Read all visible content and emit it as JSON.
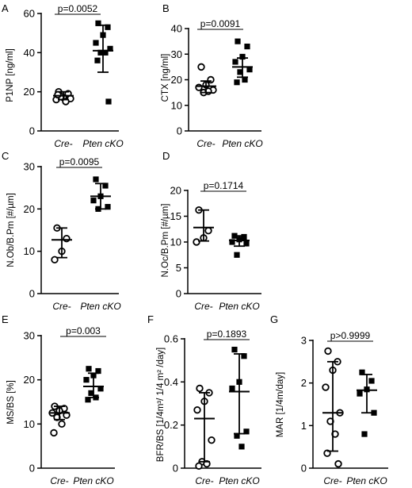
{
  "figure": {
    "colors": {
      "ink": "#000000",
      "open_marker_fill": "#ffffff",
      "background": "#ffffff"
    }
  },
  "chart_data": [
    {
      "panel": "A",
      "type": "scatter",
      "ylabel": "P1NP [ng/ml]",
      "ylim": [
        0,
        60
      ],
      "yticks": [
        0,
        20,
        40,
        60
      ],
      "categories": [
        "Cre-",
        "Pten cKO"
      ],
      "pvalue": "p=0.0052",
      "groups": [
        {
          "category": "Cre-",
          "marker": "circle",
          "mean": 18,
          "err_low": 16,
          "err_high": 20,
          "values": [
            20,
            19,
            17,
            16,
            16.5,
            17.5,
            15,
            18.5
          ]
        },
        {
          "category": "Pten cKO",
          "marker": "square",
          "mean": 41,
          "err_low": 30,
          "err_high": 54,
          "values": [
            55,
            53,
            49,
            45,
            42,
            40,
            40,
            36,
            15
          ]
        }
      ]
    },
    {
      "panel": "B",
      "type": "scatter",
      "ylabel": "CTX [ng/ml]",
      "ylim": [
        0,
        40
      ],
      "yticks": [
        0,
        10,
        20,
        30,
        40
      ],
      "categories": [
        "Cre-",
        "Pten cKO"
      ],
      "pvalue": "p=0.0091",
      "groups": [
        {
          "category": "Cre-",
          "marker": "circle",
          "mean": 17.5,
          "err_low": 15,
          "err_high": 19.5,
          "values": [
            25,
            20,
            18,
            17,
            16,
            15,
            15.5
          ]
        },
        {
          "category": "Pten cKO",
          "marker": "square",
          "mean": 25,
          "err_low": 21,
          "err_high": 28.5,
          "values": [
            35,
            33,
            29,
            27,
            24,
            23,
            20,
            19
          ]
        }
      ]
    },
    {
      "panel": "C",
      "type": "scatter",
      "ylabel": "N.Ob/B.Pm [#/µm]",
      "ylim": [
        0,
        30
      ],
      "yticks": [
        0,
        10,
        20,
        30
      ],
      "categories": [
        "Cre-",
        "Pten cKO"
      ],
      "pvalue": "p=0.0095",
      "groups": [
        {
          "category": "Cre-",
          "marker": "circle",
          "mean": 12.7,
          "err_low": 8.5,
          "err_high": 15.5,
          "values": [
            15.5,
            13,
            10,
            8
          ]
        },
        {
          "category": "Pten cKO",
          "marker": "square",
          "mean": 23,
          "err_low": 20,
          "err_high": 26,
          "values": [
            27,
            25.5,
            23,
            22,
            20.5,
            20
          ]
        }
      ]
    },
    {
      "panel": "D",
      "type": "scatter",
      "ylabel": "N.Oc/B.Pm [#/µm]",
      "ylim": [
        0,
        20
      ],
      "yticks": [
        0,
        5,
        10,
        15,
        20
      ],
      "categories": [
        "Cre-",
        "Pten cKO"
      ],
      "pvalue": "p=0.1714",
      "groups": [
        {
          "category": "Cre-",
          "marker": "circle",
          "mean": 12.8,
          "err_low": 10.2,
          "err_high": 16.2,
          "values": [
            16.2,
            12.2,
            10.8,
            10
          ]
        },
        {
          "category": "Pten cKO",
          "marker": "square",
          "mean": 10.3,
          "err_low": 9.2,
          "err_high": 11.2,
          "values": [
            11.2,
            11,
            10.5,
            10,
            9.7,
            7.5
          ]
        }
      ]
    },
    {
      "panel": "E",
      "type": "scatter",
      "ylabel": "MS/BS [%]",
      "ylim": [
        0,
        30
      ],
      "yticks": [
        0,
        10,
        20,
        30
      ],
      "categories": [
        "Cre-",
        "Pten cKO"
      ],
      "pvalue": "p=0.003",
      "groups": [
        {
          "category": "Cre-",
          "marker": "circle",
          "mean": 12.5,
          "err_low": 11,
          "err_high": 14,
          "values": [
            14,
            13.5,
            13,
            12.5,
            12,
            11.5,
            10,
            8
          ]
        },
        {
          "category": "Pten cKO",
          "marker": "square",
          "mean": 18.5,
          "err_low": 16,
          "err_high": 21.5,
          "values": [
            22.5,
            22,
            21,
            20,
            18,
            17,
            16,
            15.5
          ]
        }
      ]
    },
    {
      "panel": "F",
      "type": "scatter",
      "ylabel": "BFR/BS [1/4m³/ 1/4 m² /day]",
      "ylim": [
        0,
        0.6
      ],
      "yticks": [
        0,
        0.2,
        0.4,
        0.6
      ],
      "categories": [
        "Cre-",
        "Pten cKO"
      ],
      "pvalue": "p=0.1893",
      "groups": [
        {
          "category": "Cre-",
          "marker": "circle",
          "mean": 0.23,
          "err_low": 0.03,
          "err_high": 0.35,
          "values": [
            0.37,
            0.35,
            0.31,
            0.27,
            0.13,
            0.03,
            0.02,
            0.01
          ]
        },
        {
          "category": "Pten cKO",
          "marker": "square",
          "mean": 0.355,
          "err_low": 0.16,
          "err_high": 0.53,
          "values": [
            0.55,
            0.52,
            0.4,
            0.37,
            0.17,
            0.15,
            0.1
          ]
        }
      ]
    },
    {
      "panel": "G",
      "type": "scatter",
      "ylabel": "MAR [1/4m/day]",
      "ylim": [
        0,
        3
      ],
      "yticks": [
        0,
        1,
        2,
        3
      ],
      "categories": [
        "Cre-",
        "Pten cKO"
      ],
      "pvalue": "p>0.9999",
      "groups": [
        {
          "category": "Cre-",
          "marker": "circle",
          "mean": 1.3,
          "err_low": 0.4,
          "err_high": 2.5,
          "values": [
            2.75,
            2.5,
            2.3,
            1.9,
            1.3,
            1.1,
            0.8,
            0.35,
            0.1
          ]
        },
        {
          "category": "Pten cKO",
          "marker": "square",
          "mean": 1.83,
          "err_low": 1.3,
          "err_high": 2.2,
          "values": [
            2.25,
            2.05,
            1.85,
            1.75,
            1.3,
            0.8
          ]
        }
      ]
    }
  ]
}
